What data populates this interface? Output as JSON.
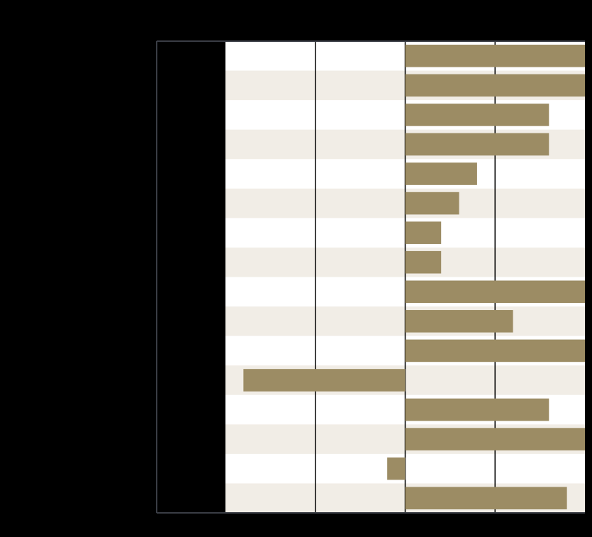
{
  "chart_data": {
    "type": "bar",
    "orientation": "horizontal",
    "title": "",
    "xlabel": "",
    "ylabel": "",
    "categories": [
      "",
      "",
      "",
      "",
      "",
      "",
      "",
      "",
      "",
      "",
      "",
      "",
      "",
      "",
      "",
      ""
    ],
    "values": [
      2.0,
      2.0,
      1.6,
      1.6,
      0.8,
      0.6,
      0.4,
      0.4,
      2.0,
      1.2,
      2.0,
      -1.8,
      1.6,
      2.0,
      -0.2,
      1.8
    ],
    "xlim": [
      -2,
      2
    ],
    "gridlines_x": [
      -1,
      0,
      1
    ],
    "row_stripes": true,
    "colors": {
      "bar": "#9c8c64",
      "stripe_light": "#ffffff",
      "stripe_alt": "#f1ede6",
      "gridline": "#000000",
      "frame": "#3a3d45",
      "background": "#000000"
    }
  }
}
